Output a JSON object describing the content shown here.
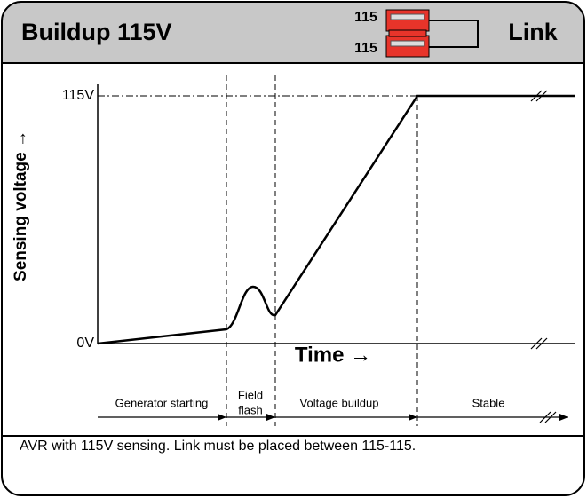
{
  "header": {
    "title": "Buildup 115V",
    "terminal_top": "115",
    "terminal_bottom": "115",
    "link": "Link"
  },
  "diagram": {
    "y_axis_label": "Sensing voltage →",
    "y_top": "115V",
    "y_bottom": "0V",
    "x_axis_label": "Time →",
    "phases": [
      "Generator starting",
      "Field",
      "flash",
      "Voltage buildup",
      "Stable"
    ]
  },
  "caption": "AVR with 115V sensing. Link must be placed between 115-115."
}
